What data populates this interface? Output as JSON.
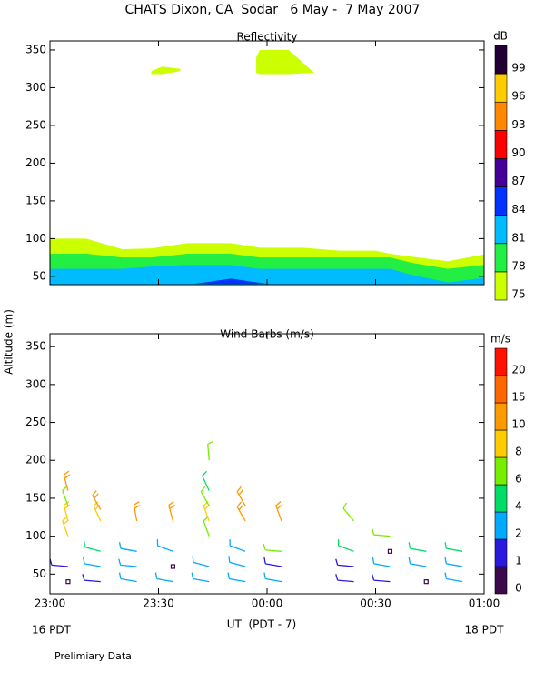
{
  "title": "CHATS Dixon, CA  Sodar   6 May -  7 May 2007",
  "ylabel": "Altitude (m)",
  "note": "Prelimiary Data",
  "chart_data": [
    {
      "type": "contour",
      "title": "Reflectivity",
      "x": [
        0,
        10,
        20,
        28,
        38,
        50,
        58,
        70,
        80,
        90,
        94,
        100,
        110,
        120
      ],
      "series": [
        {
          "color": "#ccff00",
          "values": [
            100,
            100,
            86,
            87,
            94,
            94,
            88,
            88,
            84,
            84,
            80,
            76,
            70,
            79
          ]
        },
        {
          "color": "#22ee44",
          "values": [
            80,
            80,
            75,
            75,
            80,
            80,
            75,
            75,
            75,
            75,
            75,
            68,
            60,
            65
          ]
        },
        {
          "color": "#00bbff",
          "values": [
            60,
            60,
            60,
            63,
            65,
            65,
            60,
            60,
            60,
            60,
            60,
            52,
            42,
            48
          ]
        }
      ],
      "regions": [
        {
          "color": "#0033ff",
          "x": [
            40,
            50,
            60
          ],
          "upper": [
            40,
            47,
            40
          ],
          "lower": [
            40,
            40,
            40
          ]
        },
        {
          "color": "#ccff00",
          "x": [
            28,
            31,
            36
          ],
          "upper": [
            322,
            328,
            325
          ],
          "lower": [
            318,
            318,
            322
          ]
        },
        {
          "color": "#ccff00",
          "x": [
            57,
            58,
            66,
            73
          ],
          "upper": [
            340,
            350,
            350,
            320
          ],
          "lower": [
            320,
            318,
            318,
            320
          ]
        }
      ],
      "colorbar": {
        "label": "dB",
        "levels": [
          75,
          78,
          81,
          84,
          87,
          90,
          93,
          96,
          99
        ],
        "colors": [
          "#ccff00",
          "#22ee44",
          "#00bbff",
          "#0033ff",
          "#440099",
          "#ff0000",
          "#ff8800",
          "#ffcc00",
          "#220033"
        ]
      },
      "xlim": [
        0,
        120
      ],
      "xticks": [
        0,
        30,
        60,
        90,
        120
      ],
      "ylim": [
        39,
        362
      ],
      "yticks": [
        50,
        100,
        150,
        200,
        250,
        300,
        350
      ]
    },
    {
      "type": "barbs",
      "title": "Wind Barbs (m/s)",
      "barbs": {
        "x": [
          5,
          5,
          5,
          5,
          5,
          5,
          14,
          14,
          14,
          14,
          14,
          24,
          24,
          24,
          24,
          34,
          34,
          34,
          34,
          44,
          44,
          44,
          44,
          44,
          44,
          44,
          54,
          54,
          54,
          54,
          54,
          64,
          64,
          64,
          64,
          84,
          84,
          84,
          84,
          94,
          94,
          94,
          94,
          104,
          104,
          104,
          114,
          114,
          114
        ],
        "y": [
          40,
          60,
          100,
          120,
          140,
          160,
          40,
          60,
          80,
          120,
          135,
          40,
          60,
          80,
          120,
          40,
          60,
          80,
          120,
          40,
          60,
          100,
          120,
          140,
          160,
          200,
          40,
          60,
          80,
          120,
          140,
          40,
          60,
          80,
          120,
          40,
          60,
          80,
          120,
          40,
          60,
          80,
          100,
          40,
          60,
          80,
          40,
          60,
          80
        ],
        "speed": [
          0.5,
          1.5,
          9,
          9,
          7,
          10,
          1.5,
          3,
          5,
          9,
          10,
          3,
          3,
          3,
          10,
          3,
          0.5,
          3,
          10,
          3,
          3,
          6,
          8,
          7,
          5,
          6,
          3,
          3,
          3,
          10,
          11,
          3,
          1.5,
          6,
          11,
          1.5,
          1.5,
          5,
          7,
          1.5,
          3,
          0.5,
          6,
          0.5,
          3,
          5,
          3,
          3,
          5
        ],
        "direction": [
          0,
          275,
          340,
          345,
          340,
          345,
          275,
          280,
          285,
          335,
          330,
          280,
          275,
          280,
          350,
          280,
          0,
          290,
          345,
          280,
          285,
          340,
          340,
          330,
          335,
          355,
          280,
          285,
          290,
          330,
          330,
          280,
          280,
          275,
          340,
          275,
          275,
          290,
          320,
          275,
          280,
          0,
          275,
          0,
          280,
          280,
          280,
          280,
          280
        ]
      },
      "colorbar": {
        "label": "m/s",
        "levels": [
          0,
          1,
          2,
          4,
          6,
          8,
          10,
          15,
          20
        ],
        "colors": [
          "#3a0a4a",
          "#2a1ae0",
          "#00aaff",
          "#00dd66",
          "#77ee00",
          "#ffcc00",
          "#ff9900",
          "#ff6600",
          "#ff1100"
        ]
      },
      "xlabel": "UT  (PDT - 7)",
      "x_sublabels": [
        "16 PDT",
        "18 PDT"
      ],
      "xlim": [
        0,
        120
      ],
      "xticks": [
        {
          "value": 0,
          "label": "23:00"
        },
        {
          "value": 30,
          "label": "23:30"
        },
        {
          "value": 60,
          "label": "00:00"
        },
        {
          "value": 90,
          "label": "00:30"
        },
        {
          "value": 120,
          "label": "01:00"
        }
      ],
      "ylim": [
        24,
        367
      ],
      "yticks": [
        50,
        100,
        150,
        200,
        250,
        300,
        350
      ]
    }
  ]
}
